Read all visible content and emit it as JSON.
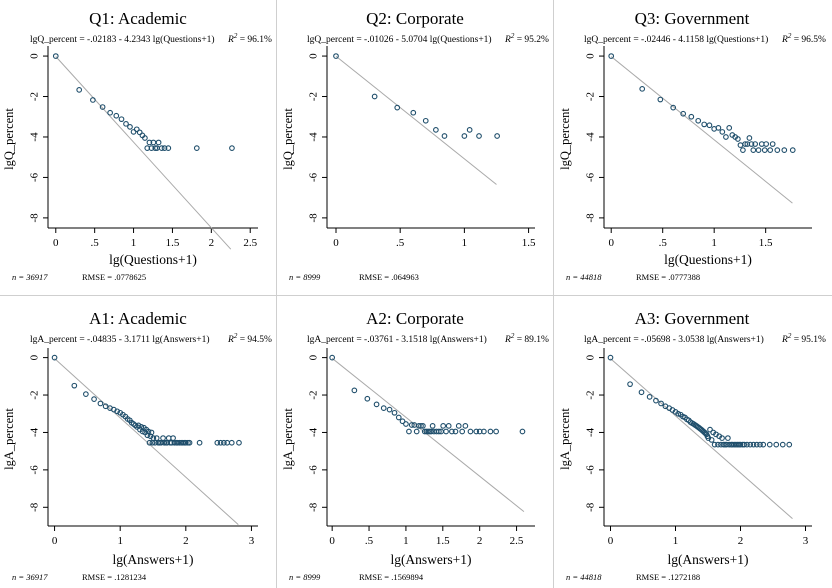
{
  "figure": {
    "panels": [
      {
        "id": "q1",
        "title": "Q1: Academic",
        "equation": "lgQ_percent = -.02183 - 4.2343 lg(Questions+1)",
        "r2_label": "R",
        "r2_value": "= 96.1%",
        "footer_n": "n = 36917",
        "footer_rmse": "RMSE = .0778625"
      },
      {
        "id": "q2",
        "title": "Q2: Corporate",
        "equation": "lgQ_percent = -.01026 - 5.0704 lg(Questions+1)",
        "r2_label": "R",
        "r2_value": "= 95.2%",
        "footer_n": "n = 8999",
        "footer_rmse": "RMSE = .064963"
      },
      {
        "id": "q3",
        "title": "Q3: Government",
        "equation": "lgQ_percent = -.02446 - 4.1158 lg(Questions+1)",
        "r2_label": "R",
        "r2_value": "= 96.5%",
        "footer_n": "n = 44818",
        "footer_rmse": "RMSE = .0777388"
      },
      {
        "id": "a1",
        "title": "A1: Academic",
        "equation": "lgA_percent = -.04835 - 3.1711 lg(Answers+1)",
        "r2_label": "R",
        "r2_value": "= 94.5%",
        "footer_n": "n = 36917",
        "footer_rmse": "RMSE = .1281234"
      },
      {
        "id": "a2",
        "title": "A2: Corporate",
        "equation": "lgA_percent = -.03761 - 3.1518 lg(Answers+1)",
        "r2_label": "R",
        "r2_value": "= 89.1%",
        "footer_n": "n = 8999",
        "footer_rmse": "RMSE = .1569894"
      },
      {
        "id": "a3",
        "title": "A3: Government",
        "equation": "lgA_percent = -.05698 - 3.0538 lg(Answers+1)",
        "r2_label": "R",
        "r2_value": "= 95.1%",
        "footer_n": "n = 44818",
        "footer_rmse": "RMSE = .1272188"
      }
    ]
  },
  "colors": {
    "marker": "#1f4e6b",
    "fit_line": "#a9a9a9",
    "axis": "#000000",
    "text": "#000000"
  },
  "chart_data": [
    {
      "type": "scatter",
      "title": "Q1: Academic",
      "xlabel": "lg(Questions+1)",
      "ylabel": "lgQ_percent",
      "xlim": [
        -0.1,
        2.6
      ],
      "ylim": [
        -8.5,
        0.3
      ],
      "xticks": [
        0,
        0.5,
        1,
        1.5,
        2,
        2.5
      ],
      "xtick_labels": [
        "0",
        ".5",
        "1",
        "1.5",
        "2",
        "2.5"
      ],
      "yticks": [
        0,
        -2,
        -4,
        -6,
        -8
      ],
      "ytick_labels": [
        "0",
        "-2",
        "-4",
        "-6",
        "-8"
      ],
      "fit": {
        "intercept": -0.02183,
        "slope": -4.2343,
        "x_range": [
          0,
          2.25
        ]
      },
      "points": {
        "x": [
          0,
          0.301,
          0.477,
          0.602,
          0.699,
          0.778,
          0.845,
          0.903,
          0.954,
          1.0,
          1.041,
          1.079,
          1.114,
          1.146,
          1.176,
          1.204,
          1.23,
          1.255,
          1.279,
          1.301,
          1.322,
          1.362,
          1.398,
          1.447,
          1.813,
          2.265
        ],
        "y": [
          0,
          -1.67,
          -2.17,
          -2.52,
          -2.8,
          -2.95,
          -3.12,
          -3.35,
          -3.5,
          -3.75,
          -3.62,
          -3.77,
          -3.92,
          -4.05,
          -4.55,
          -4.27,
          -4.55,
          -4.27,
          -4.55,
          -4.55,
          -4.27,
          -4.55,
          -4.55,
          -4.55,
          -4.55,
          -4.55
        ]
      }
    },
    {
      "type": "scatter",
      "title": "Q2: Corporate",
      "xlabel": "",
      "ylabel": "lgQ_percent",
      "xlim": [
        -0.07,
        1.55
      ],
      "ylim": [
        -8.5,
        0.3
      ],
      "xticks": [
        0,
        0.5,
        1,
        1.5
      ],
      "xtick_labels": [
        "0",
        ".5",
        "1",
        "1.5"
      ],
      "yticks": [
        0,
        -2,
        -4,
        -6,
        -8
      ],
      "ytick_labels": [
        "0",
        "-2",
        "-4",
        "-6",
        "-8"
      ],
      "fit": {
        "intercept": -0.01026,
        "slope": -5.0704,
        "x_range": [
          0,
          1.25
        ]
      },
      "points": {
        "x": [
          0,
          0.301,
          0.477,
          0.602,
          0.699,
          0.778,
          0.845,
          1.0,
          1.041,
          1.114,
          1.255
        ],
        "y": [
          0,
          -2.0,
          -2.55,
          -2.8,
          -3.2,
          -3.65,
          -3.95,
          -3.95,
          -3.65,
          -3.95,
          -3.95
        ]
      }
    },
    {
      "type": "scatter",
      "title": "Q3: Government",
      "xlabel": "lg(Questions+1)",
      "ylabel": "lgQ_percent",
      "xlim": [
        -0.07,
        1.95
      ],
      "ylim": [
        -8.5,
        0.3
      ],
      "xticks": [
        0,
        0.5,
        1,
        1.5
      ],
      "xtick_labels": [
        "0",
        ".5",
        "1",
        "1.5"
      ],
      "yticks": [
        0,
        -2,
        -4,
        -6,
        -8
      ],
      "ytick_labels": [
        "0",
        "-2",
        "-4",
        "-6",
        "-8"
      ],
      "fit": {
        "intercept": -0.02446,
        "slope": -4.1158,
        "x_range": [
          0,
          1.76
        ]
      },
      "points": {
        "x": [
          0,
          0.301,
          0.477,
          0.602,
          0.699,
          0.778,
          0.845,
          0.903,
          0.954,
          1.0,
          1.041,
          1.079,
          1.114,
          1.146,
          1.176,
          1.204,
          1.23,
          1.255,
          1.279,
          1.301,
          1.322,
          1.342,
          1.362,
          1.38,
          1.398,
          1.431,
          1.462,
          1.491,
          1.505,
          1.544,
          1.568,
          1.613,
          1.681,
          1.763
        ],
        "y": [
          0,
          -1.62,
          -2.15,
          -2.55,
          -2.85,
          -3.0,
          -3.2,
          -3.38,
          -3.42,
          -3.6,
          -3.55,
          -3.75,
          -4.0,
          -3.55,
          -3.9,
          -4.0,
          -4.1,
          -4.4,
          -4.65,
          -4.35,
          -4.35,
          -4.05,
          -4.35,
          -4.65,
          -4.35,
          -4.65,
          -4.35,
          -4.65,
          -4.35,
          -4.65,
          -4.35,
          -4.65,
          -4.65,
          -4.65
        ]
      }
    },
    {
      "type": "scatter",
      "title": "A1: Academic",
      "xlabel": "lg(Answers+1)",
      "ylabel": "lgA_percent",
      "xlim": [
        -0.1,
        3.1
      ],
      "ylim": [
        -9.0,
        0.3
      ],
      "xticks": [
        0,
        1,
        2,
        3
      ],
      "xtick_labels": [
        "0",
        "1",
        "2",
        "3"
      ],
      "yticks": [
        0,
        -2,
        -4,
        -6,
        -8
      ],
      "ytick_labels": [
        "0",
        "-2",
        "-4",
        "-6",
        "-8"
      ],
      "fit": {
        "intercept": -0.04835,
        "slope": -3.1711,
        "x_range": [
          0,
          2.8
        ]
      },
      "points": {
        "x": [
          0,
          0.301,
          0.477,
          0.602,
          0.699,
          0.778,
          0.845,
          0.903,
          0.954,
          1.0,
          1.041,
          1.079,
          1.114,
          1.146,
          1.176,
          1.204,
          1.23,
          1.255,
          1.279,
          1.301,
          1.322,
          1.342,
          1.362,
          1.38,
          1.398,
          1.415,
          1.431,
          1.447,
          1.462,
          1.477,
          1.491,
          1.505,
          1.531,
          1.556,
          1.58,
          1.602,
          1.623,
          1.653,
          1.672,
          1.699,
          1.716,
          1.74,
          1.763,
          1.785,
          1.806,
          1.826,
          1.857,
          1.875,
          1.903,
          1.929,
          1.954,
          1.978,
          2.0,
          2.033,
          2.057,
          2.21,
          2.48,
          2.53,
          2.58,
          2.63,
          2.7,
          2.81
        ],
        "y": [
          0,
          -1.5,
          -1.95,
          -2.22,
          -2.45,
          -2.6,
          -2.7,
          -2.78,
          -2.87,
          -2.95,
          -3.05,
          -3.15,
          -3.28,
          -3.35,
          -3.48,
          -3.55,
          -3.62,
          -3.7,
          -3.62,
          -3.85,
          -3.7,
          -3.95,
          -3.75,
          -4.0,
          -3.85,
          -4.15,
          -3.95,
          -4.55,
          -4.2,
          -4.0,
          -4.55,
          -4.3,
          -4.55,
          -4.3,
          -4.55,
          -4.55,
          -4.55,
          -4.3,
          -4.55,
          -4.55,
          -4.55,
          -4.3,
          -4.55,
          -4.55,
          -4.3,
          -4.55,
          -4.55,
          -4.55,
          -4.55,
          -4.55,
          -4.55,
          -4.55,
          -4.55,
          -4.55,
          -4.55,
          -4.55,
          -4.55,
          -4.55,
          -4.55,
          -4.55,
          -4.55,
          -4.55
        ]
      }
    },
    {
      "type": "scatter",
      "title": "A2: Corporate",
      "xlabel": "lg(Answers+1)",
      "ylabel": "lgA_percent",
      "xlim": [
        -0.07,
        2.75
      ],
      "ylim": [
        -9.0,
        0.3
      ],
      "xticks": [
        0,
        0.5,
        1,
        1.5,
        2,
        2.5
      ],
      "xtick_labels": [
        "0",
        ".5",
        "1",
        "1.5",
        "2",
        "2.5"
      ],
      "yticks": [
        0,
        -2,
        -4,
        -6,
        -8
      ],
      "ytick_labels": [
        "0",
        "-2",
        "-4",
        "-6",
        "-8"
      ],
      "fit": {
        "intercept": -0.03761,
        "slope": -3.1518,
        "x_range": [
          0,
          2.6
        ]
      },
      "points": {
        "x": [
          0,
          0.301,
          0.477,
          0.602,
          0.699,
          0.778,
          0.845,
          0.903,
          0.954,
          1.0,
          1.041,
          1.079,
          1.114,
          1.146,
          1.176,
          1.204,
          1.23,
          1.255,
          1.279,
          1.301,
          1.322,
          1.342,
          1.362,
          1.38,
          1.415,
          1.447,
          1.477,
          1.505,
          1.544,
          1.58,
          1.623,
          1.672,
          1.716,
          1.763,
          1.806,
          1.875,
          1.954,
          2.0,
          2.057,
          2.146,
          2.223,
          2.58
        ],
        "y": [
          0,
          -1.75,
          -2.2,
          -2.5,
          -2.7,
          -2.78,
          -2.95,
          -3.2,
          -3.4,
          -3.55,
          -3.95,
          -3.6,
          -3.6,
          -3.95,
          -3.65,
          -3.65,
          -3.65,
          -3.95,
          -3.95,
          -3.95,
          -3.95,
          -3.95,
          -3.65,
          -3.95,
          -3.95,
          -3.95,
          -3.95,
          -3.65,
          -3.95,
          -3.65,
          -3.95,
          -3.95,
          -3.65,
          -3.95,
          -3.65,
          -3.95,
          -3.95,
          -3.95,
          -3.95,
          -3.95,
          -3.95,
          -3.95
        ]
      }
    },
    {
      "type": "scatter",
      "title": "A3: Government",
      "xlabel": "lg(Answers+1)",
      "ylabel": "lgA_percent",
      "xlim": [
        -0.1,
        3.1
      ],
      "ylim": [
        -9.0,
        0.3
      ],
      "xticks": [
        0,
        1,
        2,
        3
      ],
      "xtick_labels": [
        "0",
        "1",
        "2",
        "3"
      ],
      "yticks": [
        0,
        -2,
        -4,
        -6,
        -8
      ],
      "ytick_labels": [
        "0",
        "-2",
        "-4",
        "-6",
        "-8"
      ],
      "fit": {
        "intercept": -0.05698,
        "slope": -3.0538,
        "x_range": [
          0,
          2.8
        ]
      },
      "points": {
        "x": [
          0,
          0.301,
          0.477,
          0.602,
          0.699,
          0.778,
          0.845,
          0.903,
          0.954,
          1.0,
          1.041,
          1.079,
          1.114,
          1.146,
          1.176,
          1.204,
          1.23,
          1.255,
          1.279,
          1.301,
          1.322,
          1.342,
          1.362,
          1.38,
          1.398,
          1.415,
          1.431,
          1.447,
          1.462,
          1.477,
          1.491,
          1.505,
          1.531,
          1.556,
          1.58,
          1.602,
          1.623,
          1.653,
          1.672,
          1.699,
          1.716,
          1.74,
          1.763,
          1.785,
          1.806,
          1.826,
          1.857,
          1.875,
          1.903,
          1.929,
          1.954,
          1.978,
          2.0,
          2.033,
          2.057,
          2.1,
          2.15,
          2.2,
          2.25,
          2.3,
          2.35,
          2.45,
          2.55,
          2.65,
          2.75
        ],
        "y": [
          0,
          -1.42,
          -1.85,
          -2.1,
          -2.3,
          -2.45,
          -2.6,
          -2.7,
          -2.8,
          -2.9,
          -3.0,
          -3.05,
          -3.15,
          -3.2,
          -3.3,
          -3.35,
          -3.45,
          -3.5,
          -3.55,
          -3.6,
          -3.65,
          -3.7,
          -3.75,
          -3.8,
          -3.85,
          -3.9,
          -3.95,
          -4.0,
          -4.05,
          -4.1,
          -4.2,
          -4.3,
          -3.85,
          -4.4,
          -4.0,
          -4.65,
          -4.1,
          -4.65,
          -4.2,
          -4.65,
          -4.3,
          -4.65,
          -4.65,
          -4.65,
          -4.3,
          -4.65,
          -4.65,
          -4.65,
          -4.65,
          -4.65,
          -4.65,
          -4.65,
          -4.65,
          -4.65,
          -4.65,
          -4.65,
          -4.65,
          -4.65,
          -4.65,
          -4.65,
          -4.65,
          -4.65,
          -4.65,
          -4.65,
          -4.65
        ]
      }
    }
  ]
}
